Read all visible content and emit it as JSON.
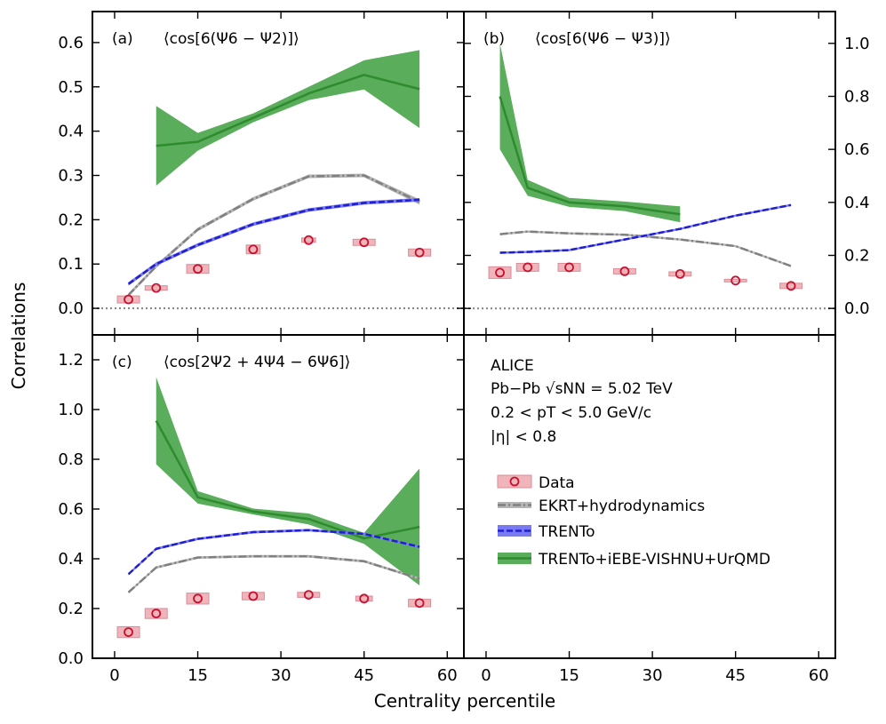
{
  "figure": {
    "ylabel": "Correlations",
    "xlabel": "Centrality percentile"
  },
  "colors": {
    "data": "#c8102e",
    "data_box": "#f0b4bb",
    "ekrt": "#808080",
    "trento": "#1f1fd0",
    "trento_band": "#7a7af0",
    "vishnu": "#2e8b2e",
    "vishnu_band": "#5aad5a"
  },
  "info": {
    "experiment": "ALICE",
    "system": "Pb−Pb √sNN = 5.02 TeV",
    "pt_range": "0.2 < pT < 5.0 GeV/c",
    "eta_range": "|η| < 0.8"
  },
  "legend": {
    "placement": "lower-right panel",
    "entries": [
      "Data",
      "EKRT+hydrodynamics",
      "TRENTo",
      "TRENTo+iEBE-VISHNU+UrQMD"
    ]
  },
  "chart_data": [
    {
      "type": "line",
      "panel": "(a)",
      "title": "⟨cos[6(Ψ6 − Ψ2)]⟩",
      "xlim": [
        -4,
        63
      ],
      "ylim": [
        -0.06,
        0.67
      ],
      "xticks": [
        0,
        15,
        30,
        45,
        60
      ],
      "yticks": [
        0.0,
        0.1,
        0.2,
        0.3,
        0.4,
        0.5,
        0.6
      ],
      "ytick_labels": [
        "0.0",
        "0.1",
        "0.2",
        "0.3",
        "0.4",
        "0.5",
        "0.6"
      ],
      "y_axis_side": "left",
      "reference_line": 0,
      "series": [
        {
          "name": "Data",
          "kind": "data",
          "x": [
            2.5,
            7.5,
            15,
            25,
            35,
            45,
            55
          ],
          "y": [
            0.02,
            0.046,
            0.089,
            0.133,
            0.154,
            0.149,
            0.126
          ],
          "syst": [
            0.008,
            0.005,
            0.01,
            0.01,
            0.005,
            0.007,
            0.008
          ],
          "box_width": [
            4,
            4,
            4,
            2.5,
            2.5,
            4,
            4
          ]
        },
        {
          "name": "EKRT+hydrodynamics",
          "kind": "ekrt",
          "x": [
            2.5,
            7.5,
            15,
            25,
            35,
            45,
            55
          ],
          "y": [
            0.03,
            0.095,
            0.178,
            0.247,
            0.298,
            0.3,
            0.24
          ],
          "err": [
            0.004,
            0.004,
            0.004,
            0.004,
            0.004,
            0.004,
            0.006
          ]
        },
        {
          "name": "TRENTo",
          "kind": "trento",
          "x": [
            2.5,
            7.5,
            15,
            25,
            35,
            45,
            55
          ],
          "y": [
            0.055,
            0.1,
            0.143,
            0.19,
            0.222,
            0.238,
            0.245
          ],
          "err": [
            0.004,
            0.004,
            0.004,
            0.004,
            0.004,
            0.004,
            0.004
          ]
        },
        {
          "name": "TRENTo+iEBE-VISHNU+UrQMD",
          "kind": "vishnu",
          "x": [
            7.5,
            15,
            25,
            35,
            45,
            55
          ],
          "y": [
            0.367,
            0.376,
            0.43,
            0.485,
            0.527,
            0.495
          ],
          "err": [
            0.09,
            0.02,
            0.01,
            0.015,
            0.033,
            0.088
          ]
        }
      ]
    },
    {
      "type": "line",
      "panel": "(b)",
      "title": "⟨cos[6(Ψ6 − Ψ3)]⟩",
      "xlim": [
        -4,
        63
      ],
      "ylim": [
        -0.1,
        1.12
      ],
      "xticks": [
        0,
        15,
        30,
        45,
        60
      ],
      "yticks": [
        0.0,
        0.2,
        0.4,
        0.6,
        0.8,
        1.0
      ],
      "ytick_labels": [
        "0.0",
        "0.2",
        "0.4",
        "0.6",
        "0.8",
        "1.0"
      ],
      "y_axis_side": "right",
      "reference_line": 0,
      "series": [
        {
          "name": "Data",
          "kind": "data",
          "x": [
            2.5,
            7.5,
            15,
            25,
            35,
            45,
            55
          ],
          "y": [
            0.135,
            0.155,
            0.155,
            0.14,
            0.13,
            0.105,
            0.085
          ],
          "syst": [
            0.022,
            0.015,
            0.015,
            0.01,
            0.008,
            0.005,
            0.01
          ],
          "box_width": [
            4,
            4,
            4,
            4,
            4,
            4,
            4
          ]
        },
        {
          "name": "EKRT+hydrodynamics",
          "kind": "ekrt",
          "x": [
            2.5,
            7.5,
            15,
            25,
            35,
            45,
            55
          ],
          "y": [
            0.28,
            0.29,
            0.283,
            0.278,
            0.26,
            0.235,
            0.16
          ],
          "err": [
            0.004,
            0.004,
            0.004,
            0.004,
            0.004,
            0.004,
            0.004
          ]
        },
        {
          "name": "TRENTo",
          "kind": "trento",
          "x": [
            2.5,
            7.5,
            15,
            25,
            35,
            45,
            55
          ],
          "y": [
            0.21,
            0.213,
            0.22,
            0.26,
            0.3,
            0.35,
            0.39
          ],
          "err": [
            0.004,
            0.004,
            0.004,
            0.004,
            0.004,
            0.004,
            0.004
          ]
        },
        {
          "name": "TRENTo+iEBE-VISHNU+UrQMD",
          "kind": "vishnu",
          "x": [
            2.5,
            7.5,
            15,
            25,
            35
          ],
          "y": [
            0.8,
            0.455,
            0.4,
            0.385,
            0.355
          ],
          "err": [
            0.2,
            0.03,
            0.017,
            0.018,
            0.03
          ]
        }
      ]
    },
    {
      "type": "line",
      "panel": "(c)",
      "title": "⟨cos[2Ψ2 + 4Ψ4 − 6Ψ6]⟩",
      "xlim": [
        -4,
        63
      ],
      "ylim": [
        0.0,
        1.3
      ],
      "xticks": [
        0,
        15,
        30,
        45,
        60
      ],
      "yticks": [
        0.0,
        0.2,
        0.4,
        0.6,
        0.8,
        1.0,
        1.2
      ],
      "ytick_labels": [
        "0.0",
        "0.2",
        "0.4",
        "0.6",
        "0.8",
        "1.0",
        "1.2"
      ],
      "y_axis_side": "left",
      "reference_line": null,
      "series": [
        {
          "name": "Data",
          "kind": "data",
          "x": [
            2.5,
            7.5,
            15,
            25,
            35,
            45,
            55
          ],
          "y": [
            0.105,
            0.18,
            0.24,
            0.25,
            0.255,
            0.24,
            0.222
          ],
          "syst": [
            0.022,
            0.02,
            0.022,
            0.015,
            0.01,
            0.01,
            0.015
          ],
          "box_width": [
            4,
            4,
            4,
            4,
            4,
            3,
            4
          ]
        },
        {
          "name": "EKRT+hydrodynamics",
          "kind": "ekrt",
          "x": [
            2.5,
            7.5,
            15,
            25,
            35,
            45,
            55
          ],
          "y": [
            0.265,
            0.365,
            0.405,
            0.41,
            0.41,
            0.39,
            0.32
          ],
          "err": [
            0.005,
            0.005,
            0.005,
            0.005,
            0.005,
            0.005,
            0.005
          ]
        },
        {
          "name": "TRENTo",
          "kind": "trento",
          "x": [
            2.5,
            7.5,
            15,
            25,
            35,
            45,
            55
          ],
          "y": [
            0.338,
            0.44,
            0.48,
            0.507,
            0.515,
            0.5,
            0.448
          ],
          "err": [
            0.005,
            0.005,
            0.005,
            0.005,
            0.005,
            0.005,
            0.005
          ]
        },
        {
          "name": "TRENTo+iEBE-VISHNU+UrQMD",
          "kind": "vishnu",
          "x": [
            7.5,
            15,
            25,
            35,
            45,
            55
          ],
          "y": [
            0.955,
            0.647,
            0.59,
            0.56,
            0.482,
            0.528
          ],
          "err": [
            0.175,
            0.025,
            0.012,
            0.022,
            0.022,
            0.235
          ]
        }
      ]
    }
  ]
}
